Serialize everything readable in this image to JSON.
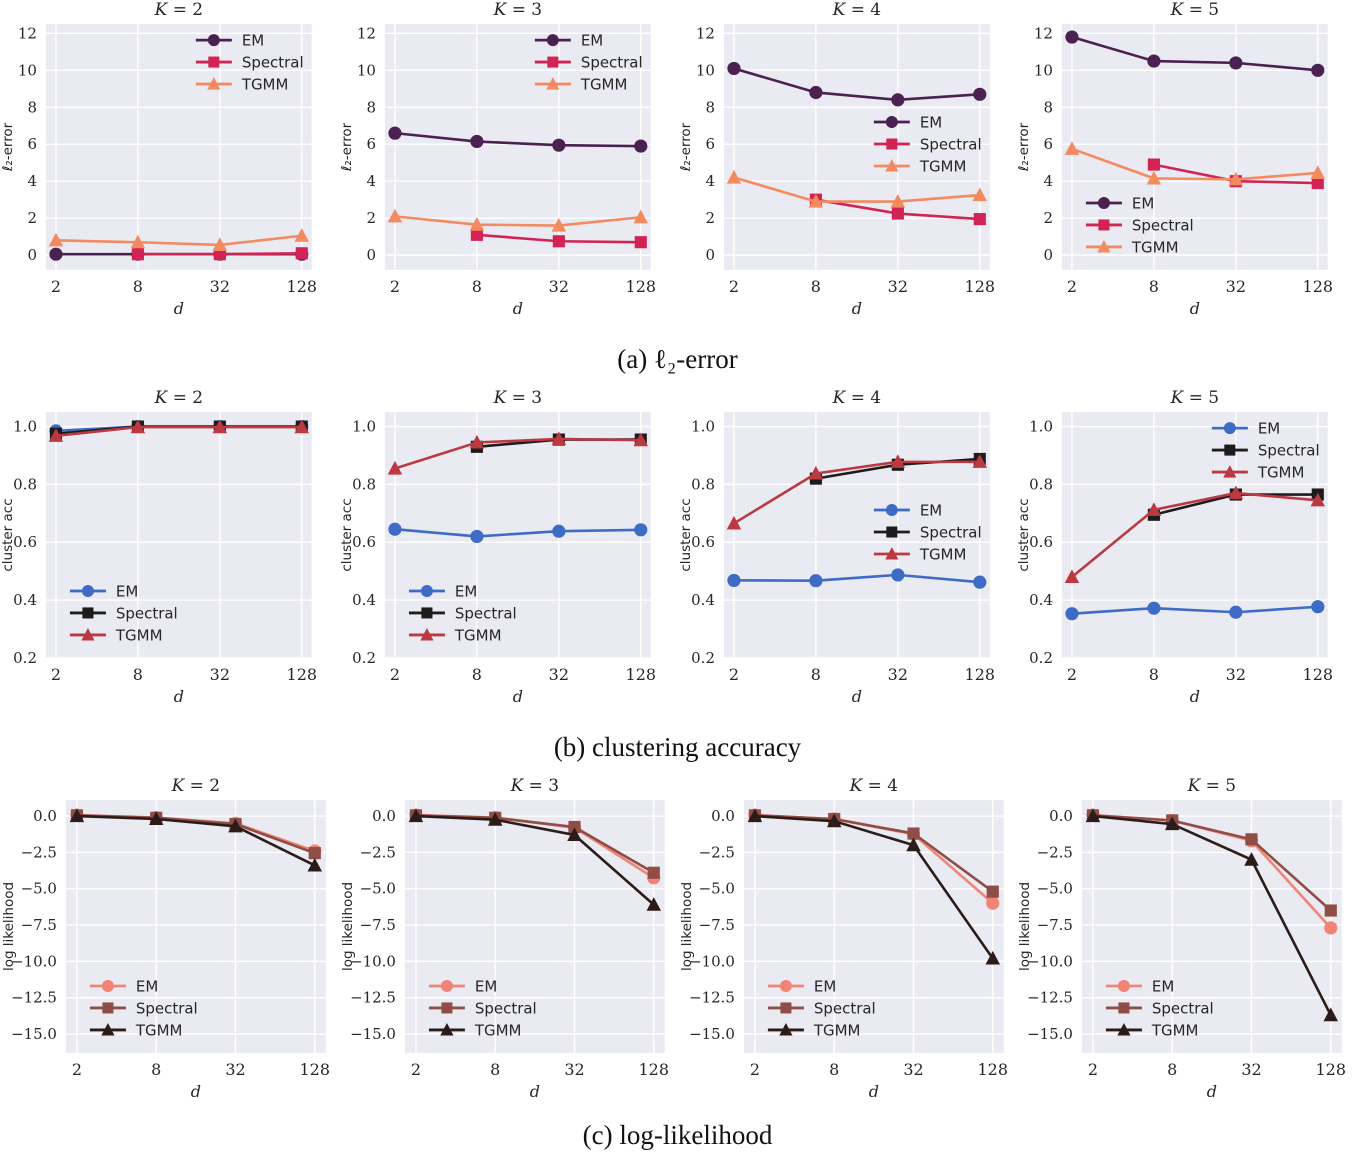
{
  "chart_data": {
    "type": "line",
    "x_scale": "log",
    "x_values": [
      2,
      8,
      32,
      128
    ],
    "x_tick_labels": [
      "2",
      "8",
      "32",
      "128"
    ],
    "xlabel": "d",
    "grid": true,
    "plot_background": "#eaeaf2",
    "grid_color": "#ffffff",
    "text_color": "#262626",
    "legend_labels": [
      "EM",
      "Spectral",
      "TGMM"
    ],
    "rows": [
      {
        "id": "a",
        "caption": "(a) ℓ₂-error",
        "ylabel": "ℓ₂-error",
        "ylim": [
          -0.8,
          12.5
        ],
        "ytick_values": [
          12,
          10,
          8,
          6,
          4,
          2,
          0
        ],
        "ytick_labels": [
          "12",
          "10",
          "8",
          "6",
          "4",
          "2",
          "0"
        ],
        "series_style": [
          {
            "name": "EM",
            "color": "#4a2151",
            "marker": "circle"
          },
          {
            "name": "Spectral",
            "color": "#d22355",
            "marker": "square"
          },
          {
            "name": "TGMM",
            "color": "#f48a60",
            "marker": "triangle"
          }
        ],
        "charts": [
          {
            "title": "K = 2",
            "legend": "upper-right",
            "series": [
              {
                "name": "EM",
                "values": [
                  0.05,
                  0.05,
                  0.05,
                  0.05
                ]
              },
              {
                "name": "Spectral",
                "values": [
                  null,
                  0.05,
                  0.05,
                  0.1
                ]
              },
              {
                "name": "TGMM",
                "values": [
                  0.8,
                  0.7,
                  0.55,
                  1.05
                ]
              }
            ]
          },
          {
            "title": "K = 3",
            "legend": "upper-right",
            "series": [
              {
                "name": "EM",
                "values": [
                  6.6,
                  6.15,
                  5.95,
                  5.9
                ]
              },
              {
                "name": "Spectral",
                "values": [
                  null,
                  1.1,
                  0.75,
                  0.7
                ]
              },
              {
                "name": "TGMM",
                "values": [
                  2.1,
                  1.65,
                  1.6,
                  2.05
                ]
              }
            ]
          },
          {
            "title": "K = 4",
            "legend": "center-right",
            "series": [
              {
                "name": "EM",
                "values": [
                  10.1,
                  8.8,
                  8.4,
                  8.7
                ]
              },
              {
                "name": "Spectral",
                "values": [
                  null,
                  3.0,
                  2.25,
                  1.95
                ]
              },
              {
                "name": "TGMM",
                "values": [
                  4.2,
                  2.9,
                  2.9,
                  3.25
                ]
              }
            ]
          },
          {
            "title": "K = 5",
            "legend": "lower-left",
            "series": [
              {
                "name": "EM",
                "values": [
                  11.8,
                  10.5,
                  10.4,
                  10.0
                ]
              },
              {
                "name": "Spectral",
                "values": [
                  null,
                  4.9,
                  4.0,
                  3.9
                ]
              },
              {
                "name": "TGMM",
                "values": [
                  5.75,
                  4.15,
                  4.1,
                  4.45
                ]
              }
            ]
          }
        ]
      },
      {
        "id": "b",
        "caption": "(b) clustering accuracy",
        "ylabel": "cluster acc",
        "ylim": [
          0.2,
          1.05
        ],
        "ytick_values": [
          1.0,
          0.8,
          0.6,
          0.4,
          0.2
        ],
        "ytick_labels": [
          "1.0",
          "0.8",
          "0.6",
          "0.4",
          "0.2"
        ],
        "series_style": [
          {
            "name": "EM",
            "color": "#3d6bc6",
            "marker": "circle"
          },
          {
            "name": "Spectral",
            "color": "#1c1c1c",
            "marker": "square"
          },
          {
            "name": "TGMM",
            "color": "#bc3942",
            "marker": "triangle"
          }
        ],
        "charts": [
          {
            "title": "K = 2",
            "legend": "lower-left",
            "series": [
              {
                "name": "EM",
                "values": [
                  0.985,
                  1.0,
                  1.0,
                  1.0
                ]
              },
              {
                "name": "Spectral",
                "values": [
                  0.975,
                  1.0,
                  1.0,
                  1.0
                ]
              },
              {
                "name": "TGMM",
                "values": [
                  0.968,
                  0.998,
                  0.998,
                  0.998
                ]
              }
            ]
          },
          {
            "title": "K = 3",
            "legend": "lower-left",
            "series": [
              {
                "name": "EM",
                "values": [
                  0.645,
                  0.62,
                  0.638,
                  0.643
                ]
              },
              {
                "name": "Spectral",
                "values": [
                  null,
                  0.93,
                  0.955,
                  0.955
                ]
              },
              {
                "name": "TGMM",
                "values": [
                  0.855,
                  0.945,
                  0.957,
                  0.953
                ]
              }
            ]
          },
          {
            "title": "K = 4",
            "legend": "center-right",
            "series": [
              {
                "name": "EM",
                "values": [
                  0.468,
                  0.467,
                  0.487,
                  0.462
                ]
              },
              {
                "name": "Spectral",
                "values": [
                  null,
                  0.82,
                  0.868,
                  0.888
                ]
              },
              {
                "name": "TGMM",
                "values": [
                  0.665,
                  0.838,
                  0.878,
                  0.878
                ]
              }
            ]
          },
          {
            "title": "K = 5",
            "legend": "upper-right",
            "series": [
              {
                "name": "EM",
                "values": [
                  0.353,
                  0.372,
                  0.358,
                  0.377
                ]
              },
              {
                "name": "Spectral",
                "values": [
                  null,
                  0.695,
                  0.765,
                  0.765
                ]
              },
              {
                "name": "TGMM",
                "values": [
                  0.48,
                  0.712,
                  0.77,
                  0.745
                ]
              }
            ]
          }
        ]
      },
      {
        "id": "c",
        "caption": "(c) log-likelihood",
        "ylabel": "log likelihood",
        "ylim": [
          -16.3,
          1.1
        ],
        "ytick_values": [
          0.0,
          -2.5,
          -5.0,
          -7.5,
          -10.0,
          -12.5,
          -15.0
        ],
        "ytick_labels": [
          "0.0",
          "−2.5",
          "−5.0",
          "−7.5",
          "−10.0",
          "−12.5",
          "−15.0"
        ],
        "series_style": [
          {
            "name": "EM",
            "color": "#ef8477",
            "marker": "circle"
          },
          {
            "name": "Spectral",
            "color": "#8f4d45",
            "marker": "square"
          },
          {
            "name": "TGMM",
            "color": "#2c1c19",
            "marker": "triangle"
          }
        ],
        "charts": [
          {
            "title": "K = 2",
            "legend": "lower-left",
            "series": [
              {
                "name": "EM",
                "values": [
                  0.07,
                  -0.1,
                  -0.5,
                  -2.4
                ]
              },
              {
                "name": "Spectral",
                "values": [
                  0.05,
                  -0.12,
                  -0.55,
                  -2.55
                ]
              },
              {
                "name": "TGMM",
                "values": [
                  0.0,
                  -0.2,
                  -0.7,
                  -3.4
                ]
              }
            ]
          },
          {
            "title": "K = 3",
            "legend": "lower-left",
            "series": [
              {
                "name": "EM",
                "values": [
                  0.07,
                  -0.1,
                  -0.8,
                  -4.25
                ]
              },
              {
                "name": "Spectral",
                "values": [
                  0.05,
                  -0.12,
                  -0.75,
                  -3.9
                ]
              },
              {
                "name": "TGMM",
                "values": [
                  0.0,
                  -0.25,
                  -1.3,
                  -6.1
                ]
              }
            ]
          },
          {
            "title": "K = 4",
            "legend": "lower-left",
            "series": [
              {
                "name": "EM",
                "values": [
                  0.07,
                  -0.2,
                  -1.25,
                  -6.0
                ]
              },
              {
                "name": "Spectral",
                "values": [
                  0.05,
                  -0.2,
                  -1.2,
                  -5.2
                ]
              },
              {
                "name": "TGMM",
                "values": [
                  0.0,
                  -0.35,
                  -2.0,
                  -9.8
                ]
              }
            ]
          },
          {
            "title": "K = 5",
            "legend": "lower-left",
            "series": [
              {
                "name": "EM",
                "values": [
                  0.07,
                  -0.3,
                  -1.7,
                  -7.7
                ]
              },
              {
                "name": "Spectral",
                "values": [
                  0.05,
                  -0.3,
                  -1.6,
                  -6.5
                ]
              },
              {
                "name": "TGMM",
                "values": [
                  0.0,
                  -0.55,
                  -3.0,
                  -13.7
                ]
              }
            ]
          }
        ]
      }
    ]
  }
}
